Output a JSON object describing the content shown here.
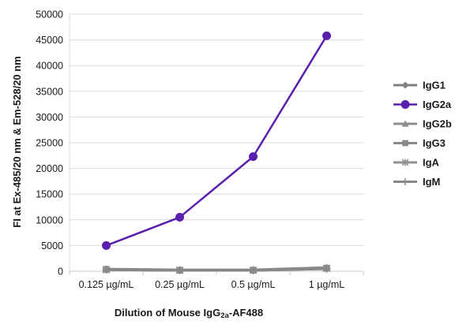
{
  "chart_data": {
    "type": "line",
    "categories": [
      "0.125 µg/mL",
      "0.25 µg/mL",
      "0.5 µg/mL",
      "1 µg/mL"
    ],
    "ylim": [
      0,
      50000
    ],
    "yticks": [
      0,
      5000,
      10000,
      15000,
      20000,
      25000,
      30000,
      35000,
      40000,
      45000,
      50000
    ],
    "xlabel_main": "Dilution of Mouse IgG",
    "xlabel_sub": "2a",
    "xlabel_tail": "-AF488",
    "ylabel": "FI at Ex-485/20 nm & Em-528/20 nm",
    "grid": "horizontal",
    "legend_position": "right",
    "series": [
      {
        "name": "IgG1",
        "values": [
          300,
          200,
          200,
          500
        ],
        "color": "#808080",
        "marker": "diamond"
      },
      {
        "name": "IgG2a",
        "values": [
          5000,
          10500,
          22300,
          45800
        ],
        "color": "#5b1fae",
        "marker": "circle"
      },
      {
        "name": "IgG2b",
        "values": [
          400,
          250,
          250,
          700
        ],
        "color": "#8c8c8c",
        "marker": "triangle"
      },
      {
        "name": "IgG3",
        "values": [
          350,
          200,
          200,
          600
        ],
        "color": "#8a8a8a",
        "marker": "square"
      },
      {
        "name": "IgA",
        "values": [
          300,
          200,
          200,
          550
        ],
        "color": "#909090",
        "marker": "star"
      },
      {
        "name": "IgM",
        "values": [
          300,
          200,
          200,
          500
        ],
        "color": "#888888",
        "marker": "plus"
      }
    ]
  }
}
